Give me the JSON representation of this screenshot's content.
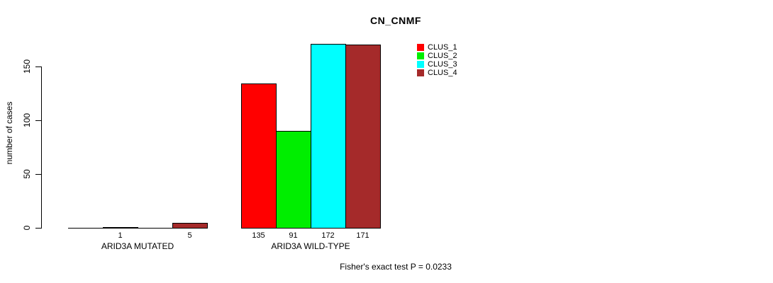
{
  "title": "CN_CNMF",
  "footer": "Fisher's exact test P = 0.0233",
  "y_axis": {
    "label": "number of cases",
    "tick_labels": [
      "0",
      "50",
      "100",
      "150"
    ]
  },
  "legend": {
    "position": "top-right",
    "items": [
      {
        "label": "CLUS_1",
        "color": "#FF0000"
      },
      {
        "label": "CLUS_2",
        "color": "#00EE00"
      },
      {
        "label": "CLUS_3",
        "color": "#00FFFF"
      },
      {
        "label": "CLUS_4",
        "color": "#A52A2A"
      }
    ]
  },
  "chart_data": {
    "type": "bar",
    "title": "CN_CNMF",
    "xlabel": "",
    "ylabel": "number of cases",
    "ylim": [
      0,
      175
    ],
    "yticks": [
      0,
      50,
      100,
      150
    ],
    "grid": false,
    "legend_position": "top-right",
    "categories": [
      "ARID3A MUTATED",
      "ARID3A WILD-TYPE"
    ],
    "series": [
      {
        "name": "CLUS_1",
        "color": "#FF0000",
        "values": [
          0,
          135
        ]
      },
      {
        "name": "CLUS_2",
        "color": "#00EE00",
        "values": [
          1,
          91
        ]
      },
      {
        "name": "CLUS_3",
        "color": "#00FFFF",
        "values": [
          0,
          172
        ]
      },
      {
        "name": "CLUS_4",
        "color": "#A52A2A",
        "values": [
          5,
          171
        ]
      }
    ],
    "bar_labels": [
      [
        "",
        "1",
        "",
        "5"
      ],
      [
        "135",
        "91",
        "172",
        "171"
      ]
    ],
    "annotation": "Fisher's exact test P = 0.0233"
  }
}
